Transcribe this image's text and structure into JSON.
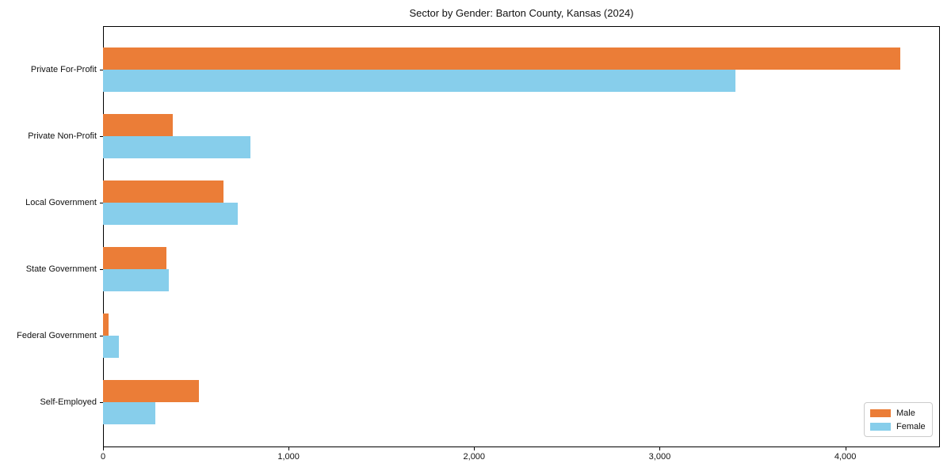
{
  "chart_data": {
    "type": "bar",
    "orientation": "horizontal",
    "title": "Sector by Gender: Barton County, Kansas (2024)",
    "categories": [
      "Private For-Profit",
      "Private Non-Profit",
      "Local Government",
      "State Government",
      "Federal Government",
      "Self-Employed"
    ],
    "series": [
      {
        "name": "Male",
        "color": "#eb7d37",
        "values": [
          4295,
          375,
          650,
          340,
          30,
          515
        ]
      },
      {
        "name": "Female",
        "color": "#87ceeb",
        "values": [
          3410,
          795,
          725,
          355,
          85,
          280
        ]
      }
    ],
    "xlim": [
      0,
      4510
    ],
    "xticks": {
      "values": [
        0,
        1000,
        2000,
        3000,
        4000
      ],
      "labels": [
        "0",
        "1,000",
        "2,000",
        "3,000",
        "4,000"
      ]
    },
    "grid": false,
    "legend_position": "lower right",
    "axis_color": "#000000",
    "background_color": "#ffffff"
  }
}
